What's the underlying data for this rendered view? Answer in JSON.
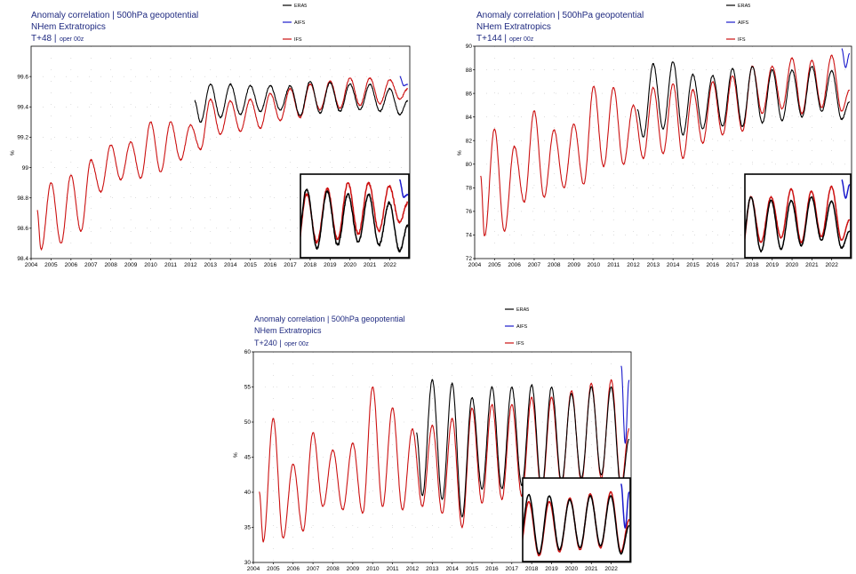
{
  "chart_data": [
    {
      "type": "line",
      "title": "Anomaly correlation | 500hPa geopotential",
      "subtitle": "NHem Extratropics",
      "lead_label": "T+48 |",
      "lead_note": "oper 00z",
      "ylabel": "%",
      "xlim": [
        2004,
        2023
      ],
      "ylim": [
        98.4,
        99.8
      ],
      "yticks": [
        "98.4",
        "98.6",
        "98.8",
        "99",
        "99.2",
        "99.4",
        "99.6"
      ],
      "xticks": [
        "2004",
        "2005",
        "2006",
        "2007",
        "2008",
        "2009",
        "2010",
        "2011",
        "2012",
        "2013",
        "2014",
        "2015",
        "2016",
        "2017",
        "2018",
        "2019",
        "2020",
        "2021",
        "2022"
      ],
      "grid": "dotted",
      "legend": "top, outside plot",
      "inset": "zoom on 2017.7–2022.9, lower-right",
      "series": [
        {
          "name": "ERA5",
          "color": "#000000",
          "x_start": 2012.2,
          "x_end": 2022.9,
          "points": [
            [
              2012.2,
              99.44
            ],
            [
              2012.5,
              99.3
            ],
            [
              2013,
              99.55
            ],
            [
              2013.5,
              99.33
            ],
            [
              2014,
              99.55
            ],
            [
              2014.5,
              99.35
            ],
            [
              2015,
              99.54
            ],
            [
              2015.5,
              99.37
            ],
            [
              2016,
              99.54
            ],
            [
              2016.5,
              99.38
            ],
            [
              2017,
              99.54
            ],
            [
              2017.5,
              99.34
            ],
            [
              2018,
              99.57
            ],
            [
              2018.5,
              99.36
            ],
            [
              2019,
              99.56
            ],
            [
              2019.5,
              99.37
            ],
            [
              2020,
              99.55
            ],
            [
              2020.5,
              99.38
            ],
            [
              2021,
              99.55
            ],
            [
              2021.5,
              99.37
            ],
            [
              2022,
              99.52
            ],
            [
              2022.5,
              99.35
            ],
            [
              2022.9,
              99.44
            ]
          ]
        },
        {
          "name": "AIFS",
          "color": "#1a1acc",
          "x_start": 2022.5,
          "x_end": 2022.9,
          "points": [
            [
              2022.5,
              99.6
            ],
            [
              2022.7,
              99.54
            ],
            [
              2022.9,
              99.55
            ]
          ]
        },
        {
          "name": "IFS",
          "color": "#cc1111",
          "x_start": 2004.3,
          "x_end": 2022.9,
          "points": [
            [
              2004.3,
              98.72
            ],
            [
              2004.5,
              98.46
            ],
            [
              2005,
              98.9
            ],
            [
              2005.5,
              98.5
            ],
            [
              2006,
              98.95
            ],
            [
              2006.5,
              98.58
            ],
            [
              2007,
              99.05
            ],
            [
              2007.5,
              98.84
            ],
            [
              2008,
              99.15
            ],
            [
              2008.5,
              98.92
            ],
            [
              2009,
              99.17
            ],
            [
              2009.5,
              98.93
            ],
            [
              2010,
              99.3
            ],
            [
              2010.5,
              98.97
            ],
            [
              2011,
              99.3
            ],
            [
              2011.5,
              99.05
            ],
            [
              2012,
              99.28
            ],
            [
              2012.5,
              99.12
            ],
            [
              2013,
              99.45
            ],
            [
              2013.5,
              99.22
            ],
            [
              2014,
              99.44
            ],
            [
              2014.5,
              99.24
            ],
            [
              2015,
              99.45
            ],
            [
              2015.5,
              99.26
            ],
            [
              2016,
              99.49
            ],
            [
              2016.5,
              99.31
            ],
            [
              2017,
              99.52
            ],
            [
              2017.5,
              99.33
            ],
            [
              2018,
              99.55
            ],
            [
              2018.5,
              99.38
            ],
            [
              2019,
              99.57
            ],
            [
              2019.5,
              99.39
            ],
            [
              2020,
              99.59
            ],
            [
              2020.5,
              99.41
            ],
            [
              2021,
              99.59
            ],
            [
              2021.5,
              99.42
            ],
            [
              2022,
              99.58
            ],
            [
              2022.5,
              99.45
            ],
            [
              2022.9,
              99.52
            ]
          ]
        }
      ]
    },
    {
      "type": "line",
      "title": "Anomaly correlation | 500hPa geopotential",
      "subtitle": "NHem Extratropics",
      "lead_label": "T+144 |",
      "lead_note": "oper 00z",
      "ylabel": "%",
      "xlim": [
        2004,
        2023
      ],
      "ylim": [
        72,
        90
      ],
      "yticks": [
        "72",
        "74",
        "76",
        "78",
        "80",
        "82",
        "84",
        "86",
        "88",
        "90"
      ],
      "xticks": [
        "2004",
        "2005",
        "2006",
        "2007",
        "2008",
        "2009",
        "2010",
        "2011",
        "2012",
        "2013",
        "2014",
        "2015",
        "2016",
        "2017",
        "2018",
        "2019",
        "2020",
        "2021",
        "2022"
      ],
      "grid": "dotted",
      "legend": "top, outside plot",
      "inset": "zoom on 2017.7–2022.9, lower-right",
      "series": [
        {
          "name": "ERA5",
          "color": "#000000",
          "x_start": 2012.2,
          "x_end": 2022.9,
          "points": [
            [
              2012.2,
              84.6
            ],
            [
              2012.5,
              82.3
            ],
            [
              2013,
              88.5
            ],
            [
              2013.5,
              83.0
            ],
            [
              2014,
              88.7
            ],
            [
              2014.5,
              82.5
            ],
            [
              2015,
              87.6
            ],
            [
              2015.5,
              83.0
            ],
            [
              2016,
              87.5
            ],
            [
              2016.5,
              83.2
            ],
            [
              2017,
              88.1
            ],
            [
              2017.5,
              83.2
            ],
            [
              2018,
              88.3
            ],
            [
              2018.5,
              83.5
            ],
            [
              2019,
              88.0
            ],
            [
              2019.5,
              83.7
            ],
            [
              2020,
              88.0
            ],
            [
              2020.5,
              84.0
            ],
            [
              2021,
              88.3
            ],
            [
              2021.5,
              84.5
            ],
            [
              2022,
              87.9
            ],
            [
              2022.5,
              83.8
            ],
            [
              2022.9,
              85.3
            ]
          ]
        },
        {
          "name": "AIFS",
          "color": "#1a1acc",
          "x_start": 2022.5,
          "x_end": 2022.9,
          "points": [
            [
              2022.5,
              89.8
            ],
            [
              2022.7,
              88.2
            ],
            [
              2022.9,
              89.4
            ]
          ]
        },
        {
          "name": "IFS",
          "color": "#cc1111",
          "x_start": 2004.3,
          "x_end": 2022.9,
          "points": [
            [
              2004.3,
              79.0
            ],
            [
              2004.5,
              73.9
            ],
            [
              2005,
              83.0
            ],
            [
              2005.5,
              74.3
            ],
            [
              2006,
              81.5
            ],
            [
              2006.5,
              76.8
            ],
            [
              2007,
              84.5
            ],
            [
              2007.5,
              77.2
            ],
            [
              2008,
              82.9
            ],
            [
              2008.5,
              78.0
            ],
            [
              2009,
              83.4
            ],
            [
              2009.5,
              78.3
            ],
            [
              2010,
              86.6
            ],
            [
              2010.5,
              79.8
            ],
            [
              2011,
              86.5
            ],
            [
              2011.5,
              80.0
            ],
            [
              2012,
              85.0
            ],
            [
              2012.5,
              80.5
            ],
            [
              2013,
              86.5
            ],
            [
              2013.5,
              80.9
            ],
            [
              2014,
              86.8
            ],
            [
              2014.5,
              80.5
            ],
            [
              2015,
              86.3
            ],
            [
              2015.5,
              81.8
            ],
            [
              2016,
              87.0
            ],
            [
              2016.5,
              82.5
            ],
            [
              2017,
              87.5
            ],
            [
              2017.5,
              82.8
            ],
            [
              2018,
              88.3
            ],
            [
              2018.5,
              84.3
            ],
            [
              2019,
              88.3
            ],
            [
              2019.5,
              84.7
            ],
            [
              2020,
              89.0
            ],
            [
              2020.5,
              84.3
            ],
            [
              2021,
              88.8
            ],
            [
              2021.5,
              84.8
            ],
            [
              2022,
              89.2
            ],
            [
              2022.5,
              84.5
            ],
            [
              2022.9,
              86.3
            ]
          ]
        }
      ]
    },
    {
      "type": "line",
      "title": "Anomaly correlation | 500hPa geopotential",
      "subtitle": "NHem Extratropics",
      "lead_label": "T+240 |",
      "lead_note": "oper 00z",
      "ylabel": "%",
      "xlim": [
        2004,
        2023
      ],
      "ylim": [
        30,
        60
      ],
      "yticks": [
        "30",
        "35",
        "40",
        "45",
        "50",
        "55",
        "60"
      ],
      "xticks": [
        "2004",
        "2005",
        "2006",
        "2007",
        "2008",
        "2009",
        "2010",
        "2011",
        "2012",
        "2013",
        "2014",
        "2015",
        "2016",
        "2017",
        "2018",
        "2019",
        "2020",
        "2021",
        "2022"
      ],
      "grid": "dotted",
      "legend": "top, outside plot",
      "inset": "zoom on 2017.7–2022.9, lower-right",
      "series": [
        {
          "name": "ERA5",
          "color": "#000000",
          "x_start": 2012.2,
          "x_end": 2022.9,
          "points": [
            [
              2012.2,
              48.5
            ],
            [
              2012.5,
              39.5
            ],
            [
              2013,
              56.0
            ],
            [
              2013.5,
              39.0
            ],
            [
              2014,
              55.5
            ],
            [
              2014.5,
              36.5
            ],
            [
              2015,
              53.5
            ],
            [
              2015.5,
              40.5
            ],
            [
              2016,
              55.0
            ],
            [
              2016.5,
              40.5
            ],
            [
              2017,
              55.0
            ],
            [
              2017.5,
              41.0
            ],
            [
              2018,
              55.3
            ],
            [
              2018.5,
              40.5
            ],
            [
              2019,
              55.0
            ],
            [
              2019.5,
              41.5
            ],
            [
              2020,
              54.0
            ],
            [
              2020.5,
              42.0
            ],
            [
              2021,
              55.0
            ],
            [
              2021.5,
              42.5
            ],
            [
              2022,
              55.0
            ],
            [
              2022.5,
              40.5
            ],
            [
              2022.9,
              47.5
            ]
          ]
        },
        {
          "name": "AIFS",
          "color": "#1a1acc",
          "x_start": 2022.5,
          "x_end": 2022.9,
          "points": [
            [
              2022.5,
              58.0
            ],
            [
              2022.7,
              47.0
            ],
            [
              2022.9,
              56.0
            ]
          ]
        },
        {
          "name": "IFS",
          "color": "#cc1111",
          "x_start": 2004.3,
          "x_end": 2022.9,
          "points": [
            [
              2004.3,
              40.0
            ],
            [
              2004.5,
              33.0
            ],
            [
              2005,
              50.5
            ],
            [
              2005.5,
              33.5
            ],
            [
              2006,
              44.0
            ],
            [
              2006.5,
              34.5
            ],
            [
              2007,
              48.5
            ],
            [
              2007.5,
              38.0
            ],
            [
              2008,
              46.0
            ],
            [
              2008.5,
              37.5
            ],
            [
              2009,
              47.0
            ],
            [
              2009.5,
              37.0
            ],
            [
              2010,
              55.0
            ],
            [
              2010.5,
              38.0
            ],
            [
              2011,
              52.0
            ],
            [
              2011.5,
              37.5
            ],
            [
              2012,
              49.0
            ],
            [
              2012.5,
              38.0
            ],
            [
              2013,
              49.5
            ],
            [
              2013.5,
              37.0
            ],
            [
              2014,
              50.5
            ],
            [
              2014.5,
              35.0
            ],
            [
              2015,
              52.0
            ],
            [
              2015.5,
              38.5
            ],
            [
              2016,
              52.5
            ],
            [
              2016.5,
              39.0
            ],
            [
              2017,
              52.5
            ],
            [
              2017.5,
              39.5
            ],
            [
              2018,
              53.5
            ],
            [
              2018.5,
              40.0
            ],
            [
              2019,
              53.5
            ],
            [
              2019.5,
              41.0
            ],
            [
              2020,
              54.5
            ],
            [
              2020.5,
              41.5
            ],
            [
              2021,
              55.5
            ],
            [
              2021.5,
              42.0
            ],
            [
              2022,
              56.0
            ],
            [
              2022.5,
              41.0
            ],
            [
              2022.9,
              49.0
            ]
          ]
        }
      ]
    }
  ]
}
